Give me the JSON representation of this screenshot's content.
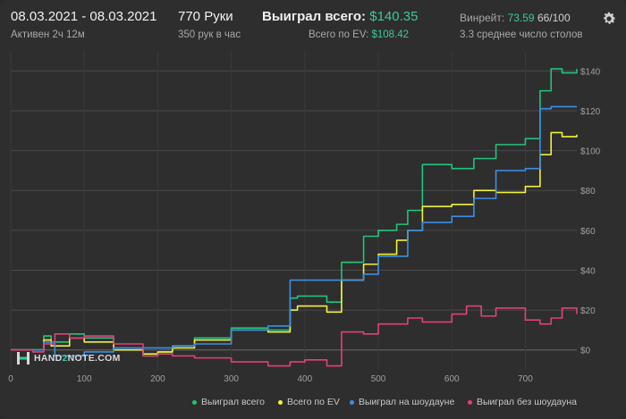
{
  "header": {
    "date_range": "08.03.2021 - 08.03.2021",
    "active": "Активен 2ч 12м",
    "hands": "770 Руки",
    "hands_per_hour": "350 рук в час",
    "won_total_label": "Выиграл всего:",
    "won_total_value": "$140.35",
    "ev_label": "Всего по EV:",
    "ev_value": "$108.42",
    "winrate_label": "Винрейт:",
    "winrate_value": "73.59",
    "winrate_score": "66/100",
    "tables": "3.3 среднее число столов"
  },
  "logo": {
    "left": "HAND",
    "mid": "2",
    "right": "NOTE.COM"
  },
  "colors": {
    "background": "#2e2e2e",
    "grid": "#4a4a4a",
    "won_total": "#21c47a",
    "ev": "#f2f235",
    "showdown": "#3b8fe6",
    "non_showdown": "#e2407c",
    "accent": "#3ec995"
  },
  "chart_data": {
    "type": "line",
    "xlim": [
      0,
      770
    ],
    "ylim": [
      -10,
      150
    ],
    "x_ticks": [
      0,
      100,
      200,
      300,
      400,
      500,
      600,
      700
    ],
    "y_ticks": [
      0,
      20,
      40,
      60,
      80,
      100,
      120,
      140
    ],
    "y_tick_labels": [
      "$0",
      "$20",
      "$40",
      "$60",
      "$80",
      "$100",
      "$120",
      "$140"
    ],
    "grid": true,
    "legend_position": "bottom-right",
    "series": [
      {
        "name": "Выиграл всего",
        "color": "#21c47a",
        "x": [
          0,
          30,
          45,
          55,
          80,
          100,
          140,
          180,
          200,
          220,
          250,
          300,
          350,
          380,
          390,
          430,
          450,
          480,
          500,
          525,
          540,
          560,
          600,
          630,
          660,
          700,
          720,
          735,
          750,
          770
        ],
        "y": [
          0,
          0,
          7,
          4,
          8,
          6,
          0,
          -3,
          -1,
          2,
          6,
          11,
          10,
          26,
          27,
          24,
          44,
          57,
          60,
          63,
          70,
          93,
          91,
          96,
          103,
          106,
          130,
          141,
          139,
          141
        ]
      },
      {
        "name": "Всего по EV",
        "color": "#f2f235",
        "x": [
          0,
          30,
          45,
          55,
          80,
          100,
          140,
          180,
          200,
          220,
          250,
          300,
          350,
          380,
          390,
          430,
          450,
          480,
          500,
          525,
          540,
          560,
          600,
          630,
          660,
          700,
          720,
          735,
          750,
          770
        ],
        "y": [
          0,
          0,
          5,
          2,
          6,
          4,
          0,
          -2,
          -1,
          1,
          5,
          10,
          9,
          20,
          22,
          19,
          35,
          43,
          48,
          55,
          60,
          72,
          73,
          80,
          79,
          82,
          98,
          109,
          107,
          108
        ]
      },
      {
        "name": "Выиграл на шоудауне",
        "color": "#3b8fe6",
        "x": [
          0,
          30,
          45,
          60,
          80,
          100,
          140,
          180,
          200,
          220,
          250,
          300,
          350,
          380,
          390,
          430,
          450,
          480,
          500,
          525,
          540,
          560,
          600,
          630,
          660,
          700,
          720,
          735,
          750,
          770
        ],
        "y": [
          0,
          0,
          4,
          -3,
          -3,
          -1,
          1,
          1,
          1,
          2,
          3,
          10,
          12,
          35,
          35,
          35,
          35,
          38,
          47,
          47,
          60,
          64,
          67,
          76,
          90,
          91,
          121,
          122,
          122,
          122
        ]
      },
      {
        "name": "Выиграл без шоудауна",
        "color": "#e2407c",
        "x": [
          0,
          30,
          45,
          60,
          80,
          100,
          140,
          180,
          200,
          220,
          250,
          300,
          350,
          380,
          400,
          430,
          450,
          480,
          500,
          525,
          540,
          560,
          600,
          620,
          640,
          660,
          700,
          720,
          735,
          750,
          770
        ],
        "y": [
          0,
          -1,
          3,
          8,
          6,
          7,
          3,
          -3,
          -2,
          -3,
          -4,
          -6,
          -8,
          -6,
          -5,
          -8,
          9,
          8,
          13,
          13,
          16,
          14,
          18,
          22,
          17,
          21,
          15,
          13,
          16,
          21,
          18
        ]
      }
    ]
  }
}
